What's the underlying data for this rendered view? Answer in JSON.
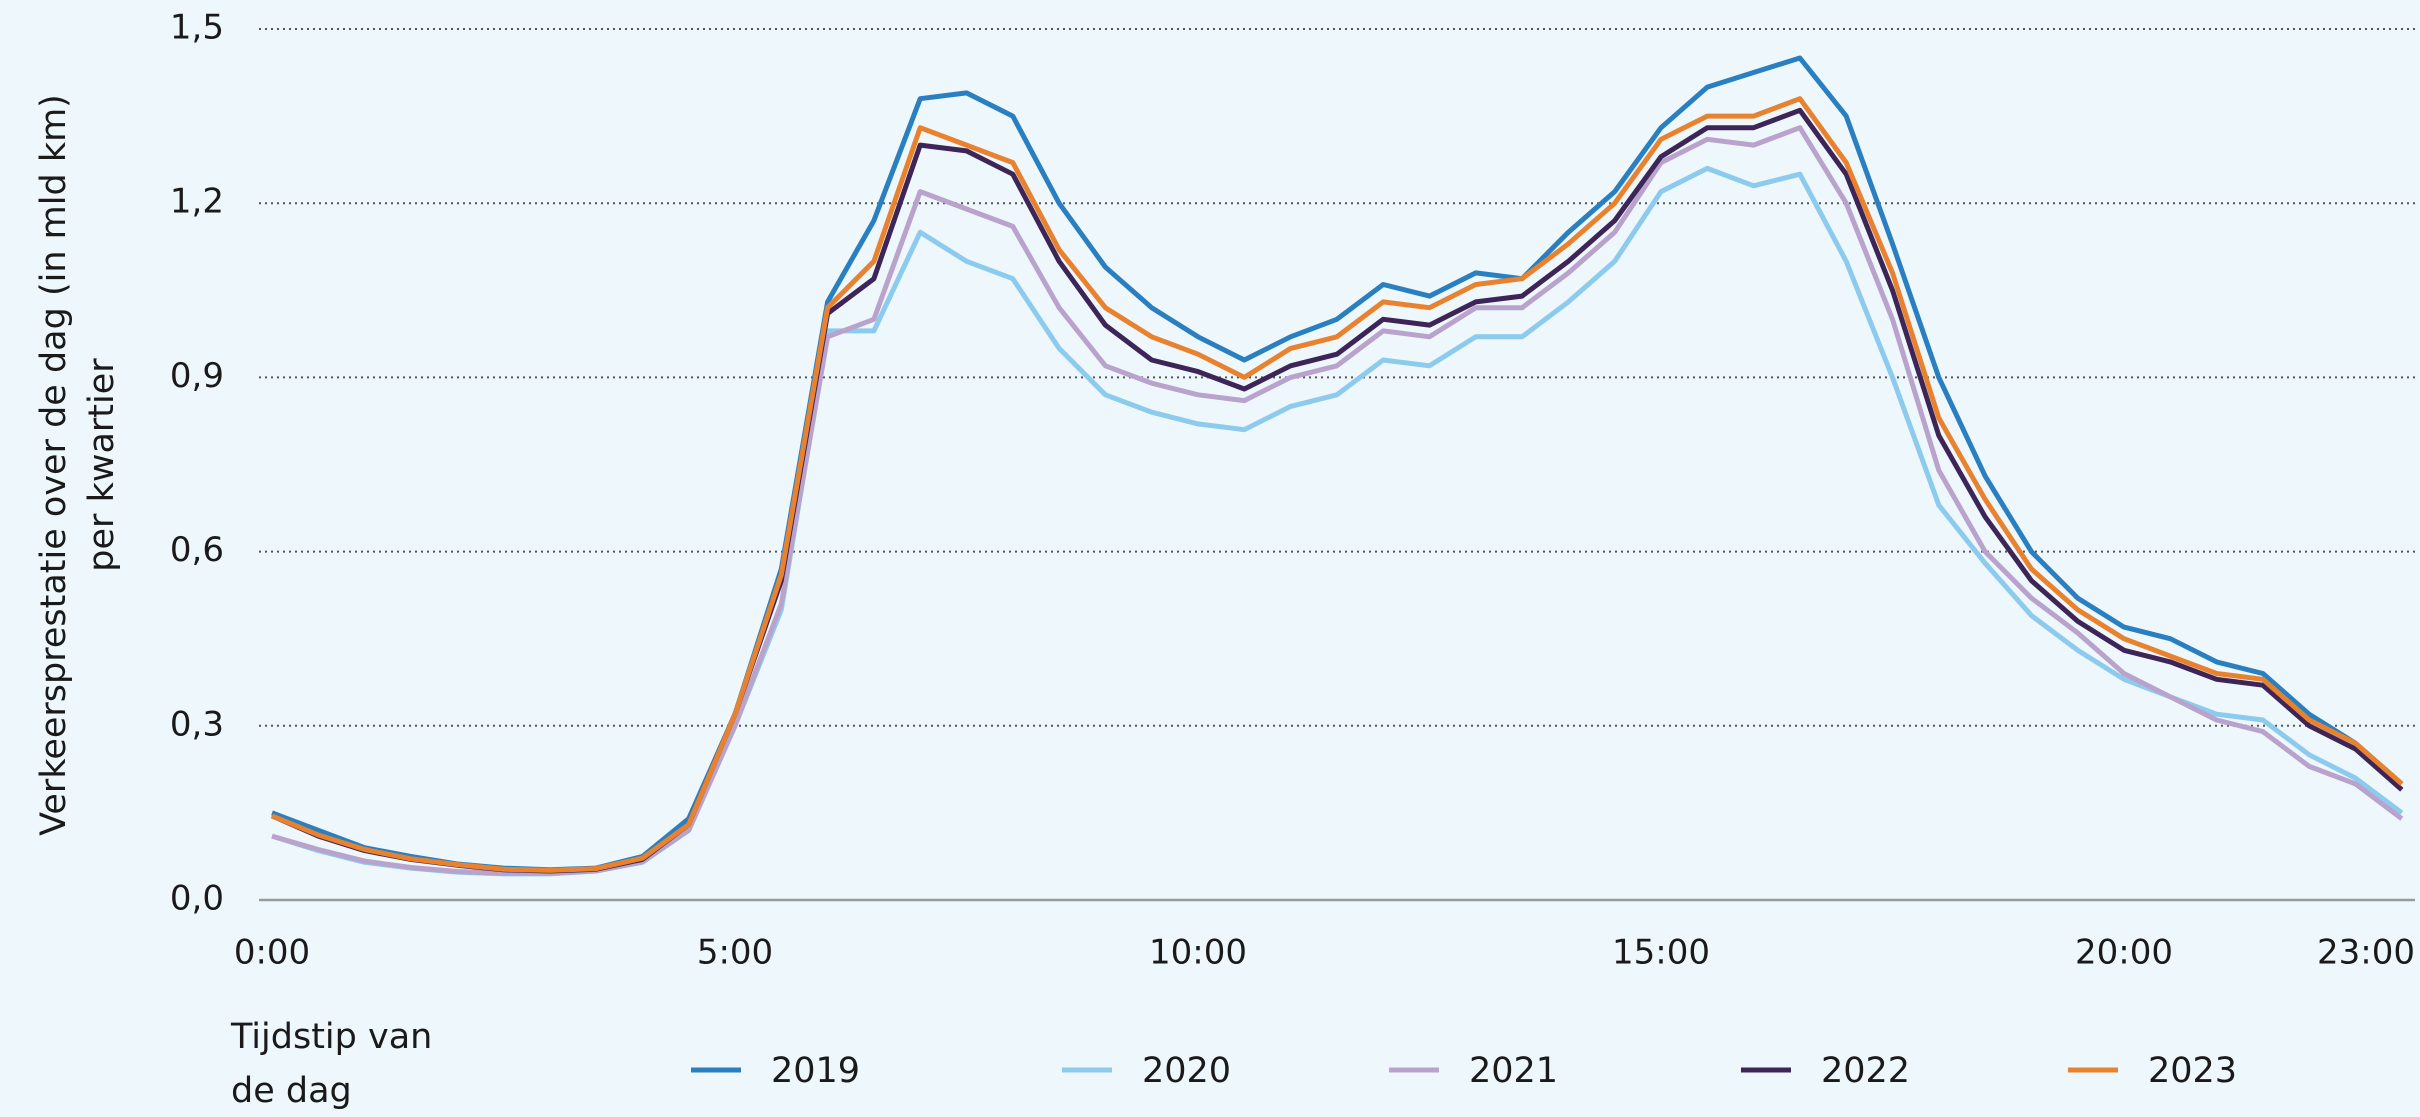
{
  "chart_data": {
    "type": "line",
    "ylabel": [
      "Verkeersprestatie over de dag (in mld km)",
      "per kwartier"
    ],
    "xlabel": [
      "Tijdstip van",
      "de dag"
    ],
    "x": [
      0,
      0.5,
      1,
      1.5,
      2,
      2.5,
      3,
      3.5,
      4,
      4.5,
      5,
      5.5,
      6,
      6.5,
      7,
      7.5,
      8,
      8.5,
      9,
      9.5,
      10,
      10.5,
      11,
      11.5,
      12,
      12.5,
      13,
      13.5,
      14,
      14.5,
      15,
      15.5,
      16,
      16.5,
      17,
      17.5,
      18,
      18.5,
      19,
      19.5,
      20,
      20.5,
      21,
      21.5,
      22,
      22.5,
      23
    ],
    "series": [
      {
        "name": "2019",
        "color": "#2a7fc1",
        "values": [
          0.15,
          0.12,
          0.09,
          0.075,
          0.062,
          0.055,
          0.052,
          0.055,
          0.075,
          0.14,
          0.32,
          0.57,
          1.03,
          1.17,
          1.38,
          1.39,
          1.35,
          1.2,
          1.09,
          1.02,
          0.97,
          0.93,
          0.97,
          1.0,
          1.06,
          1.04,
          1.08,
          1.07,
          1.15,
          1.22,
          1.33,
          1.4,
          1.425,
          1.45,
          1.35,
          1.13,
          0.9,
          0.73,
          0.6,
          0.52,
          0.47,
          0.45,
          0.41,
          0.39,
          0.32,
          0.27,
          0.2
        ]
      },
      {
        "name": "2020",
        "color": "#8ccbee",
        "values": [
          0.11,
          0.085,
          0.065,
          0.055,
          0.048,
          0.045,
          0.045,
          0.05,
          0.065,
          0.12,
          0.3,
          0.5,
          0.98,
          0.98,
          1.15,
          1.1,
          1.07,
          0.95,
          0.87,
          0.84,
          0.82,
          0.81,
          0.85,
          0.87,
          0.93,
          0.92,
          0.97,
          0.97,
          1.03,
          1.1,
          1.22,
          1.26,
          1.23,
          1.25,
          1.1,
          0.9,
          0.68,
          0.58,
          0.49,
          0.43,
          0.38,
          0.35,
          0.32,
          0.31,
          0.25,
          0.21,
          0.15
        ]
      },
      {
        "name": "2021",
        "color": "#b9a3cc",
        "values": [
          0.11,
          0.087,
          0.067,
          0.056,
          0.049,
          0.046,
          0.046,
          0.05,
          0.066,
          0.12,
          0.3,
          0.51,
          0.97,
          1.0,
          1.22,
          1.19,
          1.16,
          1.02,
          0.92,
          0.89,
          0.87,
          0.86,
          0.9,
          0.92,
          0.98,
          0.97,
          1.02,
          1.02,
          1.08,
          1.15,
          1.27,
          1.31,
          1.3,
          1.33,
          1.2,
          1.0,
          0.74,
          0.6,
          0.52,
          0.46,
          0.39,
          0.35,
          0.31,
          0.29,
          0.23,
          0.2,
          0.14
        ]
      },
      {
        "name": "2022",
        "color": "#3d2558",
        "values": [
          0.145,
          0.11,
          0.085,
          0.07,
          0.06,
          0.052,
          0.05,
          0.053,
          0.07,
          0.13,
          0.32,
          0.55,
          1.01,
          1.07,
          1.3,
          1.29,
          1.25,
          1.1,
          0.99,
          0.93,
          0.91,
          0.88,
          0.92,
          0.94,
          1.0,
          0.99,
          1.03,
          1.04,
          1.1,
          1.17,
          1.28,
          1.33,
          1.33,
          1.36,
          1.25,
          1.05,
          0.8,
          0.66,
          0.55,
          0.48,
          0.43,
          0.41,
          0.38,
          0.37,
          0.3,
          0.26,
          0.19
        ]
      },
      {
        "name": "2023",
        "color": "#e9822e",
        "values": [
          0.145,
          0.112,
          0.087,
          0.071,
          0.061,
          0.053,
          0.051,
          0.054,
          0.072,
          0.13,
          0.32,
          0.56,
          1.02,
          1.1,
          1.33,
          1.3,
          1.27,
          1.12,
          1.02,
          0.97,
          0.94,
          0.9,
          0.95,
          0.97,
          1.03,
          1.02,
          1.06,
          1.07,
          1.13,
          1.2,
          1.31,
          1.35,
          1.35,
          1.38,
          1.27,
          1.08,
          0.83,
          0.69,
          0.57,
          0.5,
          0.45,
          0.42,
          0.39,
          0.38,
          0.31,
          0.27,
          0.2
        ]
      }
    ],
    "xlim": [
      0,
      23
    ],
    "xticks": [
      {
        "value": 0,
        "label": "0:00"
      },
      {
        "value": 5,
        "label": "5:00"
      },
      {
        "value": 10,
        "label": "10:00"
      },
      {
        "value": 15,
        "label": "15:00"
      },
      {
        "value": 20,
        "label": "20:00"
      },
      {
        "value": 23,
        "label": "23:00"
      }
    ],
    "ylim": [
      0,
      1.5
    ],
    "yticks": [
      {
        "value": 0,
        "label": "0,0"
      },
      {
        "value": 0.3,
        "label": "0,3"
      },
      {
        "value": 0.6,
        "label": "0,6"
      },
      {
        "value": 0.9,
        "label": "0,9"
      },
      {
        "value": 1.2,
        "label": "1,2"
      },
      {
        "value": 1.5,
        "label": "1,5"
      }
    ],
    "grid": true,
    "legend": "bottom"
  }
}
